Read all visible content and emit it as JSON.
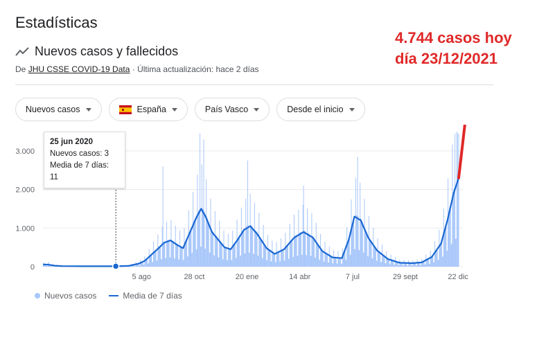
{
  "page": {
    "title": "Estadísticas",
    "subtitle": "Nuevos casos y fallecidos",
    "source_prefix": "De ",
    "source_link": "JHU CSSE COVID-19 Data",
    "source_suffix": " · Última actualización: hace 2 días"
  },
  "filters": [
    {
      "label": "Nuevos casos"
    },
    {
      "label": "España"
    },
    {
      "label": "País Vasco"
    },
    {
      "label": "Desde el inicio"
    }
  ],
  "annotation": {
    "line1": "4.744 casos hoy",
    "line2": "día 23/12/2021",
    "color": "#e02828"
  },
  "tooltip": {
    "date": "25 jun 2020",
    "cases": "Nuevos casos: 3",
    "avg": "Media de 7 días: 11"
  },
  "legend": {
    "bars": "Nuevos casos",
    "line": "Media de 7 días"
  },
  "colors": {
    "bar": "#a8c7fa",
    "line": "#1967d2",
    "grid": "#e8eaed",
    "annotation": "#e02828"
  },
  "chart_data": {
    "type": "bar",
    "y_ticks": [
      "0",
      "1.000",
      "2.000",
      "3.000"
    ],
    "ylim": [
      0,
      3500
    ],
    "x_tick_labels": [
      "5 ago",
      "28 oct",
      "20 ene",
      "14 abr",
      "7 jul",
      "29 sept",
      "22 dic"
    ],
    "x_tick_dates": [
      "2020-08-05",
      "2020-10-28",
      "2021-01-20",
      "2021-04-14",
      "2021-07-07",
      "2021-09-29",
      "2021-12-22"
    ],
    "x_range": [
      "2020-03-01",
      "2021-12-23"
    ],
    "highlight": {
      "date": "2020-06-25",
      "value": 3,
      "avg": 11
    },
    "last_value": {
      "date": "2021-12-23",
      "value": 4744
    },
    "series": [
      {
        "name": "Media de 7 días",
        "kind": "line",
        "points": [
          [
            "2020-03-01",
            60
          ],
          [
            "2020-03-10",
            50
          ],
          [
            "2020-03-20",
            25
          ],
          [
            "2020-04-01",
            15
          ],
          [
            "2020-05-01",
            10
          ],
          [
            "2020-06-01",
            10
          ],
          [
            "2020-06-25",
            11
          ],
          [
            "2020-07-15",
            20
          ],
          [
            "2020-08-01",
            80
          ],
          [
            "2020-08-10",
            150
          ],
          [
            "2020-08-20",
            300
          ],
          [
            "2020-09-01",
            480
          ],
          [
            "2020-09-10",
            620
          ],
          [
            "2020-09-20",
            680
          ],
          [
            "2020-10-01",
            560
          ],
          [
            "2020-10-10",
            480
          ],
          [
            "2020-10-20",
            850
          ],
          [
            "2020-11-01",
            1300
          ],
          [
            "2020-11-08",
            1500
          ],
          [
            "2020-11-15",
            1300
          ],
          [
            "2020-11-25",
            900
          ],
          [
            "2020-12-05",
            700
          ],
          [
            "2020-12-15",
            500
          ],
          [
            "2020-12-25",
            450
          ],
          [
            "2021-01-05",
            700
          ],
          [
            "2021-01-15",
            950
          ],
          [
            "2021-01-25",
            1050
          ],
          [
            "2021-02-05",
            850
          ],
          [
            "2021-02-20",
            480
          ],
          [
            "2021-03-05",
            330
          ],
          [
            "2021-03-20",
            450
          ],
          [
            "2021-04-05",
            750
          ],
          [
            "2021-04-20",
            900
          ],
          [
            "2021-05-05",
            750
          ],
          [
            "2021-05-20",
            400
          ],
          [
            "2021-06-05",
            240
          ],
          [
            "2021-06-20",
            220
          ],
          [
            "2021-07-01",
            700
          ],
          [
            "2021-07-10",
            1300
          ],
          [
            "2021-07-20",
            1200
          ],
          [
            "2021-08-01",
            750
          ],
          [
            "2021-08-15",
            420
          ],
          [
            "2021-09-01",
            200
          ],
          [
            "2021-09-20",
            100
          ],
          [
            "2021-10-10",
            90
          ],
          [
            "2021-10-25",
            110
          ],
          [
            "2021-11-10",
            250
          ],
          [
            "2021-11-25",
            600
          ],
          [
            "2021-12-05",
            1200
          ],
          [
            "2021-12-15",
            1900
          ],
          [
            "2021-12-23",
            2300
          ]
        ]
      },
      {
        "name": "Nuevos casos",
        "kind": "bar",
        "peaks": [
          [
            "2020-03-10",
            120
          ],
          [
            "2020-09-08",
            2600
          ],
          [
            "2020-11-06",
            3450
          ],
          [
            "2020-11-12",
            3300
          ],
          [
            "2021-01-21",
            2750
          ],
          [
            "2021-04-20",
            2100
          ],
          [
            "2021-07-15",
            2850
          ],
          [
            "2021-12-17",
            3450
          ],
          [
            "2021-12-21",
            3450
          ],
          [
            "2021-12-23",
            3450
          ]
        ]
      }
    ]
  }
}
